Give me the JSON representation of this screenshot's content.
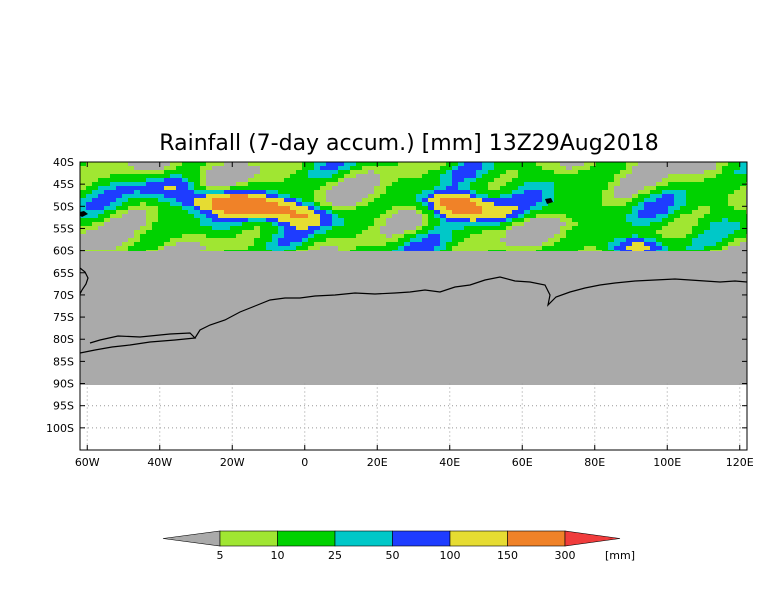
{
  "title": "Rainfall (7-day accum.) [mm] 13Z29Aug2018",
  "axes": {
    "lat_ticks": [
      "40S",
      "45S",
      "50S",
      "55S",
      "60S",
      "65S",
      "70S",
      "75S",
      "80S",
      "85S",
      "90S",
      "95S",
      "100S"
    ],
    "lon_ticks": [
      "60W",
      "40W",
      "20W",
      "0",
      "20E",
      "40E",
      "60E",
      "80E",
      "100E",
      "120E"
    ]
  },
  "legend": {
    "units": "[mm]",
    "labels": [
      "5",
      "10",
      "25",
      "50",
      "100",
      "150",
      "300"
    ],
    "colors": {
      "under": "#aaaaaa",
      "bins": [
        "#a0e632",
        "#00d200",
        "#00c8c8",
        "#1e3cff",
        "#e6dc32",
        "#f08228"
      ],
      "over": "#f03c3c"
    }
  },
  "map_colors": {
    "no_data": "#aaaaaa",
    "coast": "#000000",
    "grid": "#999999"
  }
}
